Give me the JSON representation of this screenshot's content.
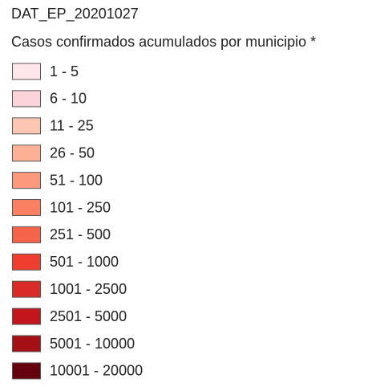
{
  "title": "DAT_EP_20201027",
  "subtitle": "Casos confirmados acumulados por municipio *",
  "legend": {
    "items": [
      {
        "label": "1 - 5",
        "color": "#fee6eb"
      },
      {
        "label": "6 - 10",
        "color": "#fdd3da"
      },
      {
        "label": "11 - 25",
        "color": "#fdc6b2"
      },
      {
        "label": "26 - 50",
        "color": "#fcb096"
      },
      {
        "label": "51 - 100",
        "color": "#fc997c"
      },
      {
        "label": "101 - 250",
        "color": "#fb7f62"
      },
      {
        "label": "251 - 500",
        "color": "#f6634b"
      },
      {
        "label": "501 - 1000",
        "color": "#ef3e30"
      },
      {
        "label": "1001 - 2500",
        "color": "#da2a26"
      },
      {
        "label": "2501 - 5000",
        "color": "#c2161c"
      },
      {
        "label": "5001 - 10000",
        "color": "#a50f16"
      },
      {
        "label": "10001 - 20000",
        "color": "#67000d"
      }
    ]
  }
}
